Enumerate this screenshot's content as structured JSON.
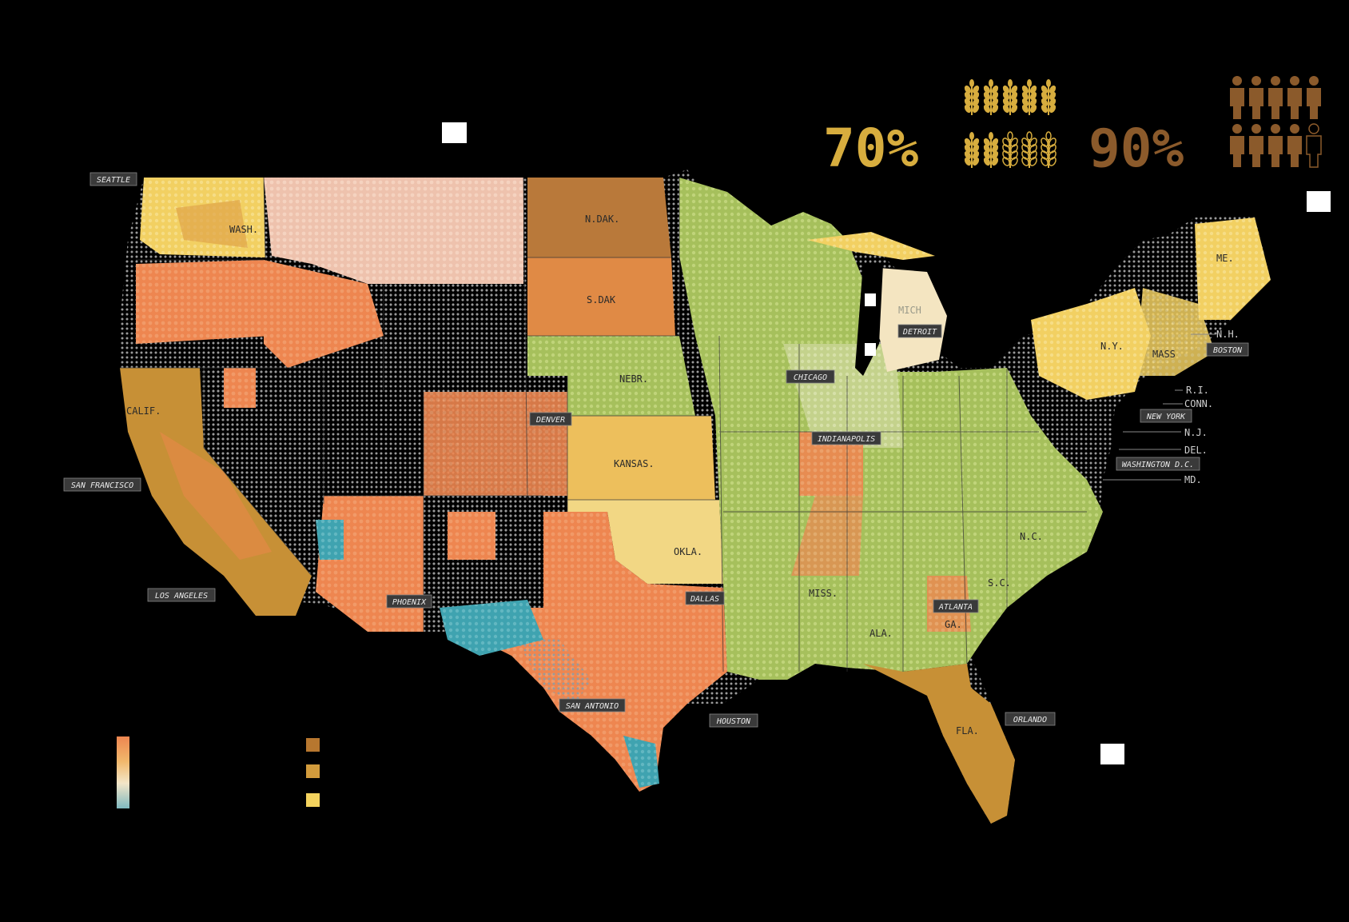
{
  "stats": {
    "crops_value": "70%",
    "people_value": "90%",
    "crops_color": "#d7ad3e",
    "people_color": "#8b5a2b"
  },
  "icons": {
    "crops": "wheat-icon",
    "people": "person-icon",
    "crops_filled": 7,
    "crops_total": 10,
    "people_filled": 9,
    "people_total": 10
  },
  "colors": {
    "dark_gold": "#b7772f",
    "mid_gold": "#d29b3c",
    "light_yellow": "#f4d35e",
    "salmon": "#ee8650",
    "light_salmon": "#f1b39a",
    "pale": "#f3e6c8",
    "green": "#a8c25a",
    "teal": "#3fa3b0",
    "gray_dots": "#9a9a9a"
  },
  "states": [
    {
      "id": "wash",
      "label": "WASH."
    },
    {
      "id": "calif",
      "label": "CALIF."
    },
    {
      "id": "ndak",
      "label": "N.DAK."
    },
    {
      "id": "sdak",
      "label": "S.DAK"
    },
    {
      "id": "nebr",
      "label": "NEBR."
    },
    {
      "id": "kansas",
      "label": "KANSAS."
    },
    {
      "id": "okla",
      "label": "OKLA."
    },
    {
      "id": "mich",
      "label": "MICH"
    },
    {
      "id": "me",
      "label": "ME."
    },
    {
      "id": "ny",
      "label": "N.Y."
    },
    {
      "id": "mass",
      "label": "MASS"
    },
    {
      "id": "nc",
      "label": "N.C."
    },
    {
      "id": "sc",
      "label": "S.C."
    },
    {
      "id": "ga",
      "label": "GA."
    },
    {
      "id": "ala",
      "label": "ALA."
    },
    {
      "id": "miss",
      "label": "MISS."
    },
    {
      "id": "fla",
      "label": "FLA."
    }
  ],
  "small_states": [
    {
      "id": "nh",
      "label": "N.H."
    },
    {
      "id": "ri",
      "label": "R.I."
    },
    {
      "id": "conn",
      "label": "CONN."
    },
    {
      "id": "nj",
      "label": "N.J."
    },
    {
      "id": "del",
      "label": "DEL."
    },
    {
      "id": "md",
      "label": "MD."
    }
  ],
  "cities": [
    {
      "id": "seattle",
      "label": "SEATTLE"
    },
    {
      "id": "san-francisco",
      "label": "SAN FRANCISCO"
    },
    {
      "id": "los-angeles",
      "label": "LOS ANGELES"
    },
    {
      "id": "phoenix",
      "label": "PHOENIX"
    },
    {
      "id": "denver",
      "label": "DENVER"
    },
    {
      "id": "dallas",
      "label": "DALLAS"
    },
    {
      "id": "san-antonio",
      "label": "SAN ANTONIO"
    },
    {
      "id": "houston",
      "label": "HOUSTON"
    },
    {
      "id": "chicago",
      "label": "CHICAGO"
    },
    {
      "id": "indianapolis",
      "label": "INDIANAPOLIS"
    },
    {
      "id": "detroit",
      "label": "DETROIT"
    },
    {
      "id": "atlanta",
      "label": "ATLANTA"
    },
    {
      "id": "orlando",
      "label": "ORLANDO"
    },
    {
      "id": "boston",
      "label": "BOSTON"
    },
    {
      "id": "new-york",
      "label": "NEW YORK"
    },
    {
      "id": "washington-dc",
      "label": "WASHINGTON D.C."
    }
  ]
}
